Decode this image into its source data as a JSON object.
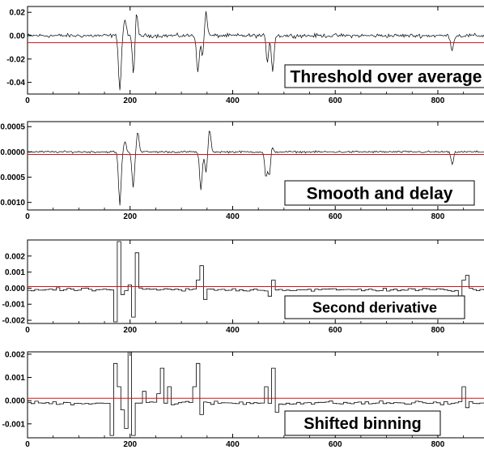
{
  "chart_data": [
    {
      "type": "line",
      "label": "Threshold over average",
      "x_ticks": [
        0,
        200,
        400,
        600,
        800
      ],
      "y_ticks": [
        "0.02",
        "0.00",
        "-0.02",
        "-0.04"
      ],
      "y_tick_values": [
        0.02,
        0.0,
        -0.02,
        -0.04
      ],
      "xlim": [
        0,
        890
      ],
      "ylim": [
        -0.05,
        0.025
      ],
      "threshold": -0.006,
      "dips": [
        [
          180,
          -0.047
        ],
        [
          207,
          -0.034
        ],
        [
          332,
          -0.031
        ],
        [
          341,
          -0.018
        ],
        [
          468,
          -0.025
        ],
        [
          478,
          -0.03
        ],
        [
          828,
          -0.013
        ]
      ],
      "peaks": [
        [
          190,
          0.014
        ],
        [
          212,
          0.021
        ],
        [
          348,
          0.021
        ],
        [
          470,
          0.004
        ]
      ],
      "noise": 0.0025
    },
    {
      "type": "line",
      "label": "Smooth and delay",
      "x_ticks": [
        0,
        200,
        400,
        600,
        800
      ],
      "y_ticks": [
        "0.0005",
        "0.0000",
        "-0.0005",
        "-0.0010"
      ],
      "y_tick_values": [
        0.0005,
        0.0,
        -0.0005,
        -0.001
      ],
      "xlim": [
        0,
        890
      ],
      "ylim": [
        -0.00115,
        0.0006
      ],
      "threshold": -5e-05,
      "dips": [
        [
          180,
          -0.00105
        ],
        [
          206,
          -0.0007
        ],
        [
          338,
          -0.00075
        ],
        [
          348,
          -0.0004
        ],
        [
          465,
          -0.0005
        ],
        [
          472,
          -0.00055
        ],
        [
          828,
          -0.00025
        ]
      ],
      "peaks": [
        [
          190,
          0.0002
        ],
        [
          215,
          0.0004
        ],
        [
          355,
          0.00045
        ],
        [
          475,
          0.0002
        ]
      ],
      "noise": 3e-05
    },
    {
      "type": "step",
      "label": "Second derivative",
      "x_ticks": [
        0,
        200,
        400,
        600,
        800
      ],
      "y_ticks": [
        "0.002",
        "0.001",
        "0.000",
        "-0.001",
        "-0.002"
      ],
      "y_tick_values": [
        0.002,
        0.001,
        0.0,
        -0.001,
        -0.002
      ],
      "xlim": [
        0,
        890
      ],
      "ylim": [
        -0.0022,
        0.003
      ],
      "threshold": 0.0001,
      "bin_width": 7,
      "spikes": [
        [
          168,
          -0.0021
        ],
        [
          175,
          0.0029
        ],
        [
          184,
          -0.0004
        ],
        [
          196,
          0.0002
        ],
        [
          203,
          -0.0018
        ],
        [
          210,
          0.0022
        ],
        [
          329,
          0.0005
        ],
        [
          336,
          0.0014
        ],
        [
          343,
          -0.0007
        ],
        [
          466,
          -0.0005
        ],
        [
          473,
          0.0005
        ],
        [
          838,
          -0.0005
        ],
        [
          845,
          0.0005
        ],
        [
          852,
          0.0008
        ]
      ],
      "base": -0.0001,
      "noise": 0.00015
    },
    {
      "type": "step",
      "label": "Shifted binning",
      "x_ticks": [
        0,
        200,
        400,
        600,
        800
      ],
      "y_ticks": [
        "0.002",
        "0.001",
        "0.000",
        "-0.001"
      ],
      "y_tick_values": [
        0.002,
        0.001,
        0.0,
        -0.001
      ],
      "xlim": [
        0,
        890
      ],
      "ylim": [
        -0.0016,
        0.0021
      ],
      "threshold": 0.0001,
      "bin_width": 7,
      "spikes": [
        [
          161,
          -0.0015
        ],
        [
          168,
          0.0016
        ],
        [
          175,
          0.0006
        ],
        [
          182,
          -0.0004
        ],
        [
          189,
          -0.0012
        ],
        [
          196,
          0.0021
        ],
        [
          203,
          -0.0015
        ],
        [
          224,
          0.0004
        ],
        [
          252,
          0.0003
        ],
        [
          259,
          0.0014
        ],
        [
          273,
          0.0006
        ],
        [
          322,
          0.0006
        ],
        [
          329,
          0.0016
        ],
        [
          336,
          -0.0006
        ],
        [
          462,
          0.0006
        ],
        [
          476,
          0.0014
        ],
        [
          483,
          -0.0005
        ],
        [
          845,
          0.0006
        ],
        [
          852,
          -0.0003
        ]
      ],
      "base": -0.0001,
      "noise": 0.00012
    }
  ]
}
